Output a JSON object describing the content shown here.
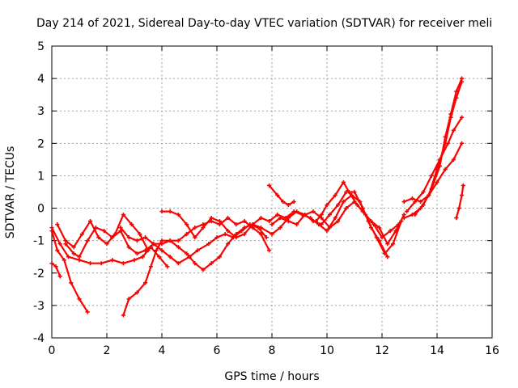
{
  "chart_data": {
    "type": "scatter",
    "title": "Day 214 of 2021, Sidereal Day-to-day VTEC variation (SDTVAR) for receiver meli",
    "xlabel": "GPS time / hours",
    "ylabel": "SDTVAR / TECUs",
    "xlim": [
      0,
      16
    ],
    "ylim": [
      -4,
      5
    ],
    "x_ticks": [
      "0",
      "2",
      "4",
      "6",
      "8",
      "10",
      "12",
      "14",
      "16"
    ],
    "y_ticks": [
      "-4",
      "-3",
      "-2",
      "-1",
      "0",
      "1",
      "2",
      "3",
      "4",
      "5"
    ],
    "grid": true,
    "marker": "+",
    "color": "#ff0000",
    "series": [
      {
        "name": "s1",
        "points": [
          [
            0.0,
            -1.7
          ],
          [
            0.15,
            -1.8
          ],
          [
            0.3,
            -2.1
          ]
        ]
      },
      {
        "name": "s2",
        "points": [
          [
            0.0,
            -0.7
          ],
          [
            0.2,
            -1.3
          ],
          [
            0.45,
            -1.6
          ],
          [
            0.7,
            -2.3
          ],
          [
            1.0,
            -2.8
          ],
          [
            1.3,
            -3.2
          ]
        ]
      },
      {
        "name": "s3",
        "points": [
          [
            0.0,
            -0.6
          ],
          [
            0.3,
            -1.1
          ],
          [
            0.6,
            -1.5
          ],
          [
            1.0,
            -1.6
          ],
          [
            1.4,
            -1.7
          ],
          [
            1.8,
            -1.7
          ],
          [
            2.2,
            -1.6
          ],
          [
            2.6,
            -1.7
          ],
          [
            3.0,
            -1.6
          ],
          [
            3.3,
            -1.5
          ],
          [
            3.6,
            -1.2
          ],
          [
            3.9,
            -1.5
          ],
          [
            4.2,
            -1.8
          ]
        ]
      },
      {
        "name": "s4",
        "points": [
          [
            0.2,
            -0.5
          ],
          [
            0.5,
            -1.0
          ],
          [
            0.8,
            -1.2
          ],
          [
            1.1,
            -0.8
          ],
          [
            1.4,
            -0.4
          ],
          [
            1.7,
            -0.9
          ],
          [
            2.0,
            -1.1
          ],
          [
            2.3,
            -0.8
          ],
          [
            2.6,
            -0.2
          ],
          [
            2.9,
            -0.5
          ],
          [
            3.2,
            -0.8
          ],
          [
            3.5,
            -1.3
          ]
        ]
      },
      {
        "name": "s5",
        "points": [
          [
            0.5,
            -1.1
          ],
          [
            0.8,
            -1.4
          ],
          [
            1.0,
            -1.5
          ],
          [
            1.3,
            -1.0
          ],
          [
            1.6,
            -0.6
          ],
          [
            1.9,
            -0.7
          ],
          [
            2.2,
            -0.9
          ],
          [
            2.5,
            -0.7
          ],
          [
            2.8,
            -1.2
          ],
          [
            3.1,
            -1.4
          ],
          [
            3.4,
            -1.3
          ],
          [
            3.7,
            -1.1
          ],
          [
            4.0,
            -1.1
          ],
          [
            4.3,
            -1.0
          ],
          [
            4.6,
            -1.0
          ],
          [
            4.9,
            -0.8
          ],
          [
            5.2,
            -0.6
          ],
          [
            5.5,
            -0.5
          ],
          [
            5.8,
            -0.4
          ],
          [
            6.1,
            -0.5
          ],
          [
            6.4,
            -0.3
          ],
          [
            6.7,
            -0.5
          ],
          [
            7.0,
            -0.4
          ],
          [
            7.3,
            -0.6
          ],
          [
            7.6,
            -0.8
          ],
          [
            7.9,
            -1.3
          ]
        ]
      },
      {
        "name": "s6",
        "points": [
          [
            2.5,
            -0.6
          ],
          [
            2.8,
            -0.9
          ],
          [
            3.1,
            -1.0
          ],
          [
            3.4,
            -0.9
          ],
          [
            3.7,
            -1.1
          ],
          [
            4.0,
            -1.3
          ],
          [
            4.3,
            -1.5
          ],
          [
            4.6,
            -1.7
          ],
          [
            5.0,
            -1.5
          ],
          [
            5.3,
            -1.3
          ],
          [
            5.7,
            -1.1
          ],
          [
            6.0,
            -0.9
          ],
          [
            6.3,
            -0.8
          ],
          [
            6.6,
            -0.9
          ],
          [
            6.9,
            -0.7
          ],
          [
            7.2,
            -0.5
          ],
          [
            7.5,
            -0.6
          ],
          [
            7.8,
            -0.9
          ]
        ]
      },
      {
        "name": "s7",
        "points": [
          [
            2.6,
            -3.3
          ],
          [
            2.8,
            -2.8
          ],
          [
            3.1,
            -2.6
          ],
          [
            3.4,
            -2.3
          ],
          [
            3.6,
            -1.8
          ],
          [
            3.8,
            -1.3
          ],
          [
            4.0,
            -1.0
          ],
          [
            4.3,
            -1.0
          ],
          [
            4.6,
            -1.2
          ],
          [
            4.9,
            -1.4
          ],
          [
            5.2,
            -1.7
          ],
          [
            5.5,
            -1.9
          ],
          [
            5.8,
            -1.7
          ],
          [
            6.1,
            -1.5
          ],
          [
            6.4,
            -1.1
          ],
          [
            6.7,
            -0.8
          ],
          [
            7.0,
            -0.6
          ],
          [
            7.3,
            -0.5
          ],
          [
            7.6,
            -0.6
          ],
          [
            8.0,
            -0.8
          ],
          [
            8.3,
            -0.6
          ],
          [
            8.6,
            -0.3
          ],
          [
            8.9,
            -0.1
          ],
          [
            9.2,
            -0.2
          ],
          [
            9.5,
            -0.1
          ],
          [
            9.8,
            -0.3
          ],
          [
            10.1,
            -0.6
          ],
          [
            10.4,
            -0.4
          ],
          [
            10.7,
            0.0
          ],
          [
            11.0,
            0.2
          ],
          [
            11.3,
            -0.1
          ],
          [
            11.6,
            -0.4
          ],
          [
            11.9,
            -0.6
          ],
          [
            12.2,
            -1.1
          ],
          [
            12.5,
            -0.7
          ],
          [
            12.8,
            -0.2
          ]
        ]
      },
      {
        "name": "s8",
        "points": [
          [
            4.0,
            -0.1
          ],
          [
            4.3,
            -0.1
          ],
          [
            4.6,
            -0.2
          ],
          [
            4.9,
            -0.5
          ],
          [
            5.2,
            -0.9
          ],
          [
            5.5,
            -0.6
          ],
          [
            5.8,
            -0.3
          ],
          [
            6.1,
            -0.4
          ],
          [
            6.4,
            -0.7
          ],
          [
            6.7,
            -0.9
          ],
          [
            7.0,
            -0.8
          ],
          [
            7.3,
            -0.5
          ],
          [
            7.6,
            -0.3
          ],
          [
            7.9,
            -0.4
          ],
          [
            8.2,
            -0.2
          ],
          [
            8.5,
            -0.3
          ],
          [
            8.8,
            -0.1
          ],
          [
            9.1,
            -0.2
          ],
          [
            9.4,
            -0.3
          ],
          [
            9.7,
            -0.5
          ],
          [
            10.0,
            -0.7
          ],
          [
            10.3,
            -0.3
          ],
          [
            10.6,
            0.2
          ],
          [
            10.9,
            0.4
          ],
          [
            11.2,
            0.2
          ],
          [
            11.5,
            -0.4
          ],
          [
            11.8,
            -0.9
          ],
          [
            12.1,
            -1.4
          ],
          [
            12.4,
            -1.1
          ],
          [
            12.7,
            -0.4
          ]
        ]
      },
      {
        "name": "s9",
        "points": [
          [
            7.9,
            0.7
          ],
          [
            8.2,
            0.4
          ],
          [
            8.4,
            0.2
          ],
          [
            8.6,
            0.1
          ],
          [
            8.8,
            0.2
          ]
        ]
      },
      {
        "name": "s10",
        "points": [
          [
            8.0,
            -0.5
          ],
          [
            8.3,
            -0.3
          ],
          [
            8.6,
            -0.4
          ],
          [
            8.9,
            -0.5
          ],
          [
            9.2,
            -0.2
          ],
          [
            9.5,
            -0.4
          ],
          [
            9.8,
            -0.5
          ],
          [
            10.1,
            -0.2
          ],
          [
            10.4,
            0.1
          ],
          [
            10.7,
            0.5
          ],
          [
            11.0,
            0.5
          ],
          [
            11.3,
            0.0
          ],
          [
            11.6,
            -0.6
          ],
          [
            11.9,
            -1.0
          ],
          [
            12.2,
            -1.5
          ]
        ]
      },
      {
        "name": "s11",
        "points": [
          [
            9.6,
            -0.4
          ],
          [
            9.8,
            -0.2
          ],
          [
            10.0,
            0.1
          ],
          [
            10.3,
            0.4
          ],
          [
            10.6,
            0.8
          ],
          [
            10.8,
            0.5
          ],
          [
            11.1,
            0.1
          ],
          [
            11.4,
            -0.2
          ],
          [
            11.7,
            -0.5
          ],
          [
            12.0,
            -0.9
          ],
          [
            12.3,
            -0.7
          ],
          [
            12.6,
            -0.5
          ]
        ]
      },
      {
        "name": "s12",
        "points": [
          [
            12.8,
            0.2
          ],
          [
            13.1,
            0.3
          ],
          [
            13.4,
            0.2
          ],
          [
            13.7,
            0.4
          ],
          [
            14.0,
            0.8
          ],
          [
            14.3,
            1.2
          ],
          [
            14.6,
            1.5
          ],
          [
            14.9,
            2.0
          ]
        ]
      },
      {
        "name": "s13",
        "points": [
          [
            12.9,
            -0.1
          ],
          [
            13.2,
            0.2
          ],
          [
            13.5,
            0.5
          ],
          [
            13.8,
            1.0
          ],
          [
            14.1,
            1.5
          ],
          [
            14.4,
            2.0
          ],
          [
            14.6,
            2.4
          ],
          [
            14.9,
            2.8
          ]
        ]
      },
      {
        "name": "s14",
        "points": [
          [
            12.8,
            -0.3
          ],
          [
            13.1,
            -0.2
          ],
          [
            13.4,
            0.0
          ],
          [
            13.7,
            0.4
          ],
          [
            14.0,
            1.2
          ],
          [
            14.3,
            2.0
          ],
          [
            14.5,
            2.8
          ],
          [
            14.7,
            3.4
          ],
          [
            14.9,
            3.9
          ]
        ]
      },
      {
        "name": "s15",
        "points": [
          [
            13.2,
            -0.2
          ],
          [
            13.5,
            0.1
          ],
          [
            13.8,
            0.6
          ],
          [
            14.1,
            1.3
          ],
          [
            14.3,
            2.2
          ],
          [
            14.5,
            2.9
          ],
          [
            14.7,
            3.6
          ],
          [
            14.9,
            4.0
          ]
        ]
      },
      {
        "name": "s16",
        "points": [
          [
            14.7,
            -0.3
          ],
          [
            14.8,
            0.0
          ],
          [
            14.9,
            0.4
          ],
          [
            14.95,
            0.7
          ]
        ]
      }
    ]
  }
}
